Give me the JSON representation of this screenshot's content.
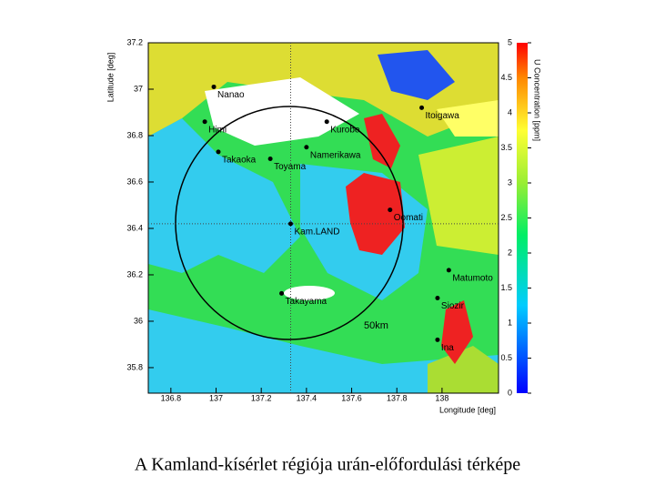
{
  "map": {
    "caption": "A Kamland-kísérlet régiója urán-előfordulási térképe",
    "x_label": "Longitude [deg]",
    "y_label": "Latitude [deg]",
    "xlim": [
      136.7,
      138.25
    ],
    "ylim": [
      35.69,
      37.2
    ],
    "xticks": [
      136.8,
      137,
      137.2,
      137.4,
      137.6,
      137.8,
      138
    ],
    "yticks": [
      35.8,
      36,
      36.2,
      36.4,
      36.6,
      36.8,
      37,
      37.2
    ],
    "colorbar": {
      "label": "U Concentration [ppm]",
      "lim": [
        0,
        5
      ],
      "ticks": [
        0,
        0.5,
        1,
        1.5,
        2,
        2.5,
        3,
        3.5,
        4,
        4.5,
        5
      ]
    },
    "radius_label": "50km",
    "cities": [
      {
        "name": "Nanao",
        "lon": 136.99,
        "lat": 37.01
      },
      {
        "name": "Himi",
        "lon": 136.95,
        "lat": 36.86
      },
      {
        "name": "Kurobe",
        "lon": 137.49,
        "lat": 36.86
      },
      {
        "name": "Itoigawa",
        "lon": 137.91,
        "lat": 36.92
      },
      {
        "name": "Takaoka",
        "lon": 137.01,
        "lat": 36.73
      },
      {
        "name": "Toyama",
        "lon": 137.24,
        "lat": 36.7
      },
      {
        "name": "Namerikawa",
        "lon": 137.4,
        "lat": 36.75
      },
      {
        "name": "Kam.LAND",
        "lon": 137.33,
        "lat": 36.42
      },
      {
        "name": "Oomati",
        "lon": 137.77,
        "lat": 36.48
      },
      {
        "name": "Matumoto",
        "lon": 138.03,
        "lat": 36.22
      },
      {
        "name": "Takayama",
        "lon": 137.29,
        "lat": 36.12
      },
      {
        "name": "Siozir",
        "lon": 137.98,
        "lat": 36.1
      },
      {
        "name": "Ina",
        "lon": 137.98,
        "lat": 35.92
      }
    ]
  }
}
